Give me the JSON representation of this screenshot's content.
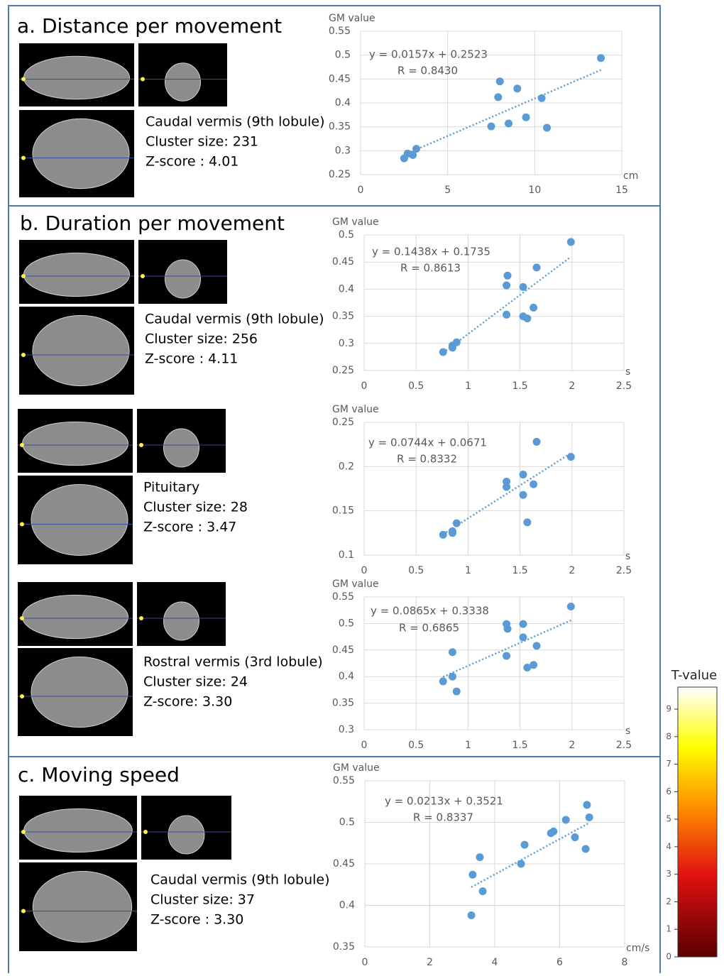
{
  "panels": [
    {
      "title": "a. Distance per movement",
      "regions": [
        {
          "lines": [
            "Caudal vermis (9th lobule)",
            "Cluster size: 231",
            "Z-score : 4.01"
          ]
        }
      ]
    },
    {
      "title": "b. Duration per movement",
      "regions": [
        {
          "lines": [
            "Caudal vermis (9th lobule)",
            "Cluster size: 256",
            "Z-score : 4.11"
          ]
        },
        {
          "lines": [
            "Pituitary",
            "Cluster size: 28",
            "Z-score : 3.47"
          ]
        },
        {
          "lines": [
            "Rostral vermis (3rd lobule)",
            "Cluster size: 24",
            "Z-score: 3.30"
          ]
        }
      ]
    },
    {
      "title": "c. Moving speed",
      "regions": [
        {
          "lines": [
            "Caudal vermis (9th lobule)",
            "Cluster size: 37",
            "Z-score : 3.30"
          ]
        }
      ]
    }
  ],
  "colorbar": {
    "title": "T-value",
    "ylim": [
      0,
      9.8
    ],
    "ticks": [
      0,
      1,
      2,
      3,
      4,
      5,
      6,
      7,
      8,
      9
    ]
  },
  "chart_data": [
    {
      "type": "scatter",
      "y_label": "GM value",
      "x_unit": "cm",
      "color": "#5b9bd5",
      "grid": true,
      "x": [
        2.5,
        2.7,
        3.0,
        3.2,
        7.5,
        7.9,
        8.0,
        8.5,
        9.0,
        9.5,
        10.4,
        10.7,
        13.8
      ],
      "values": [
        0.284,
        0.294,
        0.291,
        0.304,
        0.351,
        0.412,
        0.445,
        0.357,
        0.43,
        0.37,
        0.41,
        0.348,
        0.494
      ],
      "trendline": {
        "slope": 0.0157,
        "intercept": 0.2523
      },
      "equation": "y = 0.0157x + 0.2523",
      "r_label": "R = 0.8430",
      "xlim": [
        0,
        15
      ],
      "xticks": [
        0,
        5,
        10,
        15
      ],
      "ylim": [
        0.25,
        0.55
      ],
      "yticks": [
        0.25,
        0.3,
        0.35,
        0.4,
        0.45,
        0.5,
        0.55
      ]
    },
    {
      "type": "scatter",
      "y_label": "GM value",
      "x_unit": "s",
      "color": "#5b9bd5",
      "grid": true,
      "x": [
        0.76,
        0.85,
        0.85,
        0.89,
        1.37,
        1.37,
        1.38,
        1.53,
        1.53,
        1.57,
        1.63,
        1.66,
        1.99
      ],
      "values": [
        0.284,
        0.292,
        0.296,
        0.302,
        0.353,
        0.407,
        0.425,
        0.404,
        0.35,
        0.346,
        0.366,
        0.44,
        0.487
      ],
      "trendline": {
        "slope": 0.1438,
        "intercept": 0.1735
      },
      "equation": "y = 0.1438x + 0.1735",
      "r_label": "R = 0.8613",
      "xlim": [
        0,
        2.5
      ],
      "xticks": [
        0,
        0.5,
        1,
        1.5,
        2,
        2.5
      ],
      "ylim": [
        0.25,
        0.5
      ],
      "yticks": [
        0.25,
        0.3,
        0.35,
        0.4,
        0.45,
        0.5
      ]
    },
    {
      "type": "scatter",
      "y_label": "GM value",
      "x_unit": "s",
      "color": "#5b9bd5",
      "grid": true,
      "x": [
        0.76,
        0.85,
        0.85,
        0.89,
        1.37,
        1.37,
        1.53,
        1.53,
        1.57,
        1.63,
        1.66,
        1.99
      ],
      "values": [
        0.123,
        0.125,
        0.127,
        0.136,
        0.183,
        0.177,
        0.191,
        0.168,
        0.137,
        0.18,
        0.228,
        0.211
      ],
      "trendline": {
        "slope": 0.0744,
        "intercept": 0.0671
      },
      "equation": "y = 0.0744x + 0.0671",
      "r_label": "R = 0.8332",
      "xlim": [
        0,
        2.5
      ],
      "xticks": [
        0,
        0.5,
        1,
        1.5,
        2,
        2.5
      ],
      "ylim": [
        0.1,
        0.25
      ],
      "yticks": [
        0.1,
        0.15,
        0.2,
        0.25
      ]
    },
    {
      "type": "scatter",
      "y_label": "GM value",
      "x_unit": "s",
      "color": "#5b9bd5",
      "grid": true,
      "x": [
        0.76,
        0.85,
        0.85,
        0.89,
        1.37,
        1.38,
        1.37,
        1.53,
        1.53,
        1.57,
        1.63,
        1.66,
        1.99
      ],
      "values": [
        0.391,
        0.4,
        0.446,
        0.372,
        0.499,
        0.49,
        0.439,
        0.499,
        0.474,
        0.417,
        0.422,
        0.458,
        0.532
      ],
      "trendline": {
        "slope": 0.0865,
        "intercept": 0.3338
      },
      "equation": "y = 0.0865x + 0.3338",
      "r_label": "R = 0.6865",
      "xlim": [
        0,
        2.5
      ],
      "xticks": [
        0,
        0.5,
        1,
        1.5,
        2,
        2.5
      ],
      "ylim": [
        0.3,
        0.55
      ],
      "yticks": [
        0.3,
        0.35,
        0.4,
        0.45,
        0.5,
        0.55
      ]
    },
    {
      "type": "scatter",
      "y_label": "GM value",
      "x_unit": "cm/s",
      "color": "#5b9bd5",
      "grid": true,
      "x": [
        3.28,
        3.32,
        3.54,
        3.63,
        4.81,
        4.92,
        5.73,
        5.81,
        6.19,
        6.47,
        6.8,
        6.84,
        6.91
      ],
      "values": [
        0.388,
        0.437,
        0.458,
        0.417,
        0.45,
        0.473,
        0.487,
        0.489,
        0.503,
        0.482,
        0.468,
        0.521,
        0.506
      ],
      "trendline": {
        "slope": 0.0213,
        "intercept": 0.3521
      },
      "equation": "y = 0.0213x + 0.3521",
      "r_label": "R = 0.8337",
      "xlim": [
        0,
        8
      ],
      "xticks": [
        0,
        2,
        4,
        6,
        8
      ],
      "ylim": [
        0.35,
        0.55
      ],
      "yticks": [
        0.35,
        0.4,
        0.45,
        0.5,
        0.55
      ]
    }
  ]
}
